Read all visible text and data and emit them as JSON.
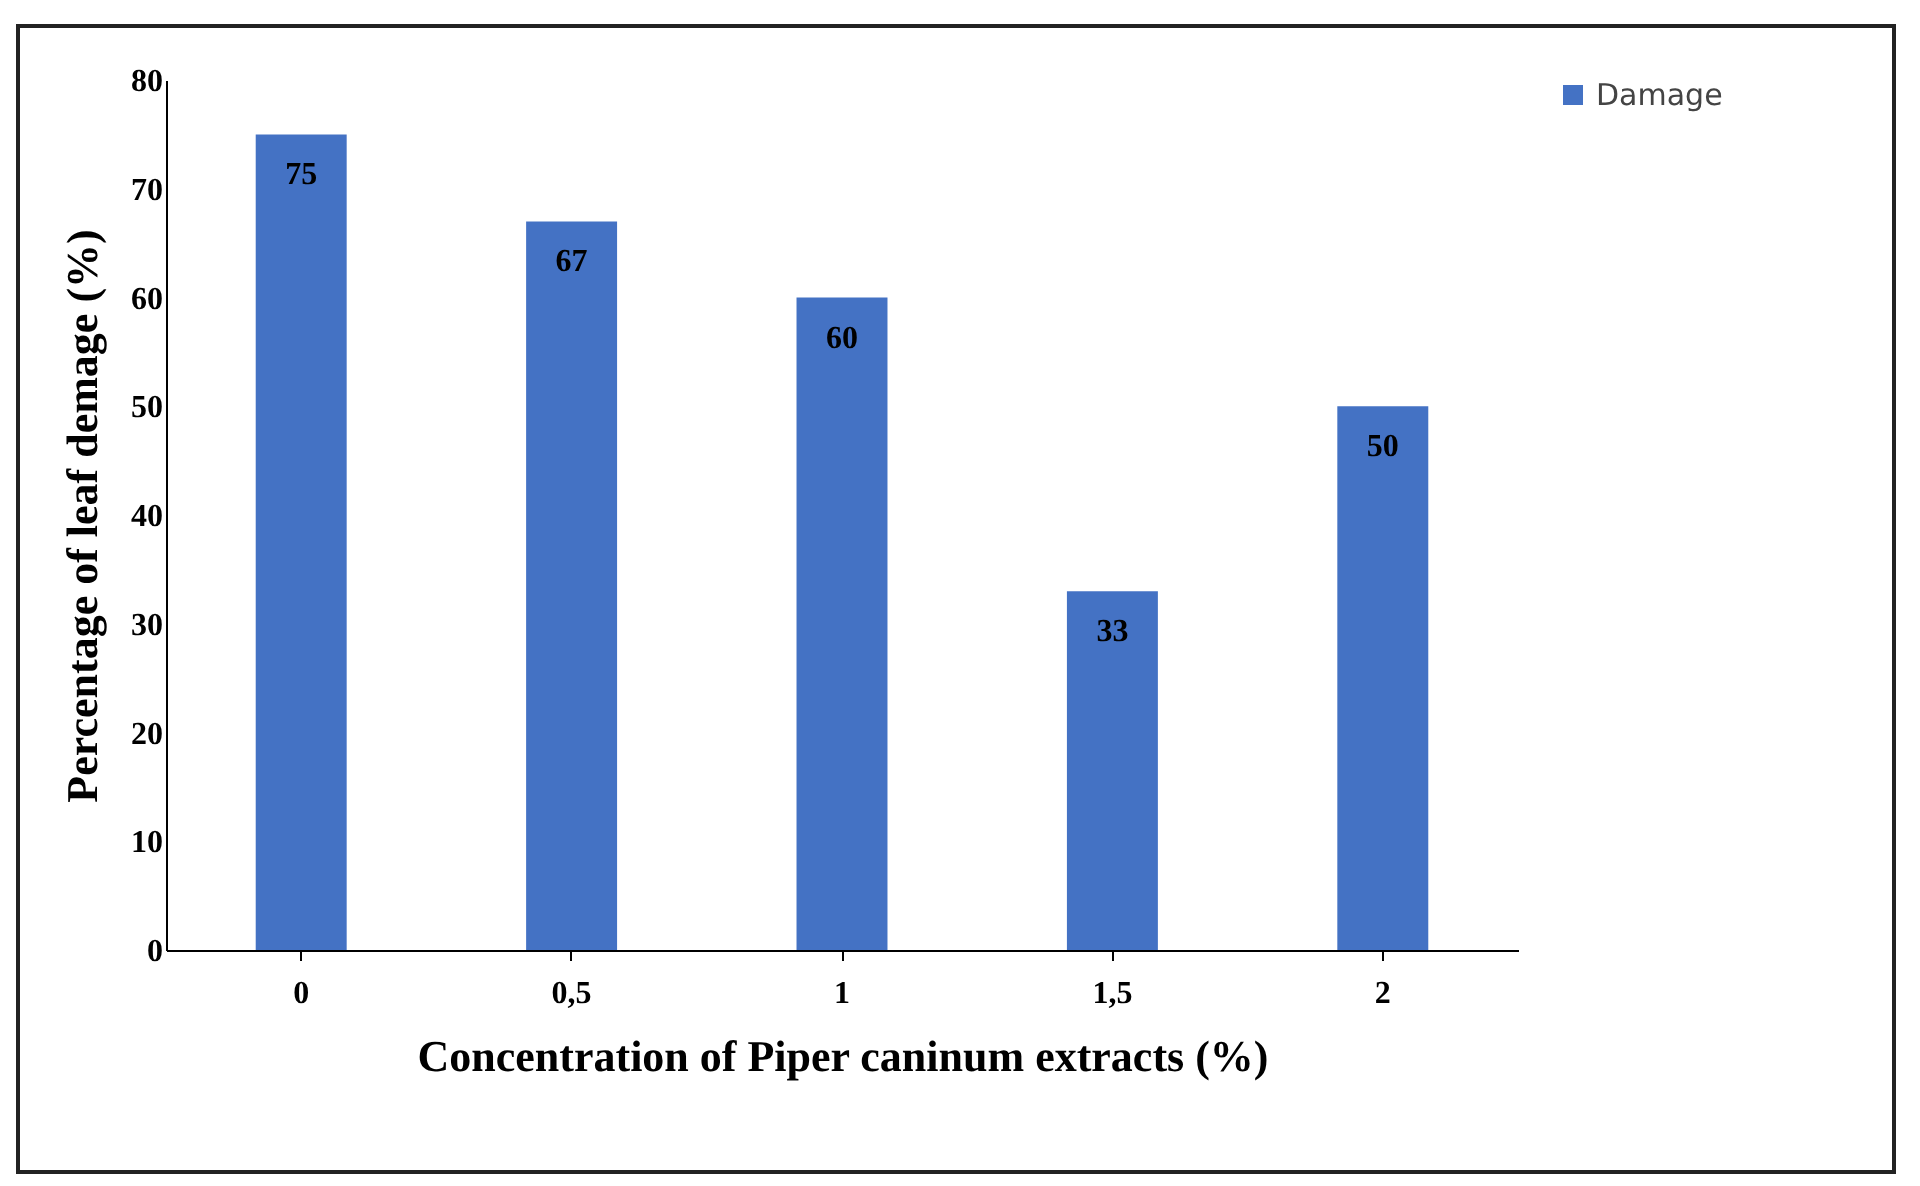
{
  "chart_data": {
    "type": "bar",
    "xlabel": "Concentration of Piper caninum extracts (%)",
    "ylabel": "Percentage of leaf demage (%)",
    "categories": [
      "0",
      "0,5",
      "1",
      "1,5",
      "2"
    ],
    "series": [
      {
        "name": "Damage",
        "color": "#4472c4",
        "values": [
          75,
          67,
          60,
          33,
          50
        ]
      }
    ],
    "ylim": [
      0,
      80
    ],
    "yticks": [
      0,
      10,
      20,
      30,
      40,
      50,
      60,
      70,
      80
    ],
    "grid": false,
    "legend": "right",
    "data_labels": true
  }
}
